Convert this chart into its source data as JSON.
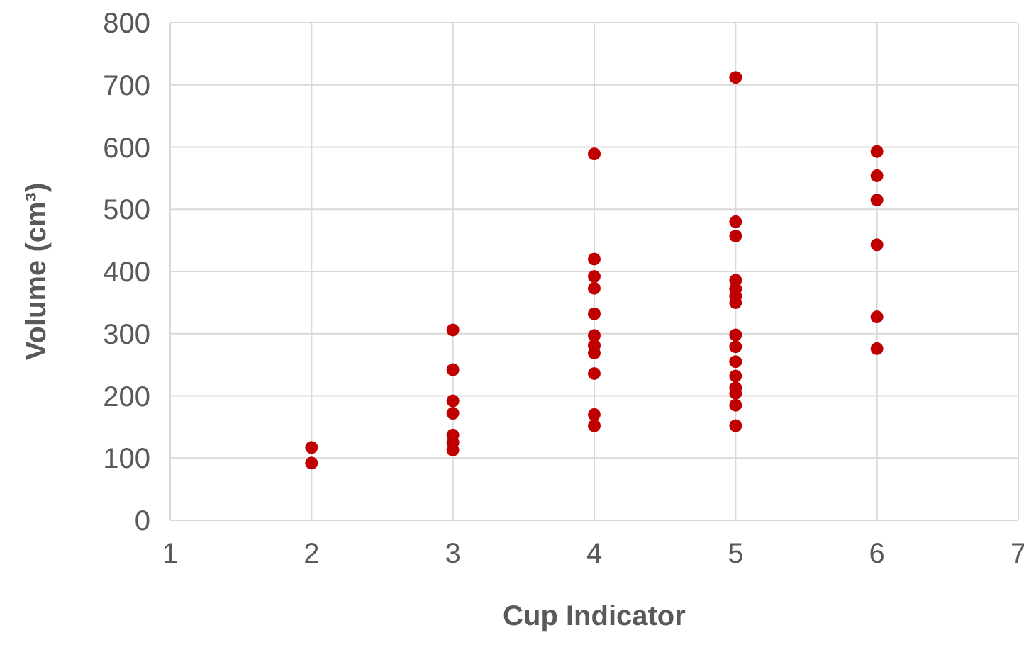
{
  "chart_data": {
    "type": "scatter",
    "xlabel": "Cup Indicator",
    "ylabel": "Volume (cm³)",
    "x": [
      2,
      2,
      3,
      3,
      3,
      3,
      3,
      3,
      3,
      4,
      4,
      4,
      4,
      4,
      4,
      4,
      4,
      4,
      4,
      4,
      5,
      5,
      5,
      5,
      5,
      5,
      5,
      5,
      5,
      5,
      5,
      5,
      5,
      5,
      5,
      6,
      6,
      6,
      6,
      6,
      6
    ],
    "values": [
      117,
      92,
      306,
      242,
      192,
      172,
      137,
      125,
      113,
      589,
      420,
      392,
      373,
      332,
      297,
      281,
      269,
      236,
      170,
      152,
      712,
      480,
      457,
      386,
      372,
      360,
      350,
      298,
      279,
      255,
      232,
      213,
      204,
      185,
      152,
      593,
      554,
      515,
      443,
      327,
      276
    ],
    "color": "#c00000",
    "marker": "circle",
    "xlim": [
      1,
      7
    ],
    "xticks": [
      1,
      2,
      3,
      4,
      5,
      6,
      7
    ],
    "ylim": [
      0,
      800
    ],
    "yticks": [
      0,
      100,
      200,
      300,
      400,
      500,
      600,
      700,
      800
    ],
    "grid": true
  }
}
